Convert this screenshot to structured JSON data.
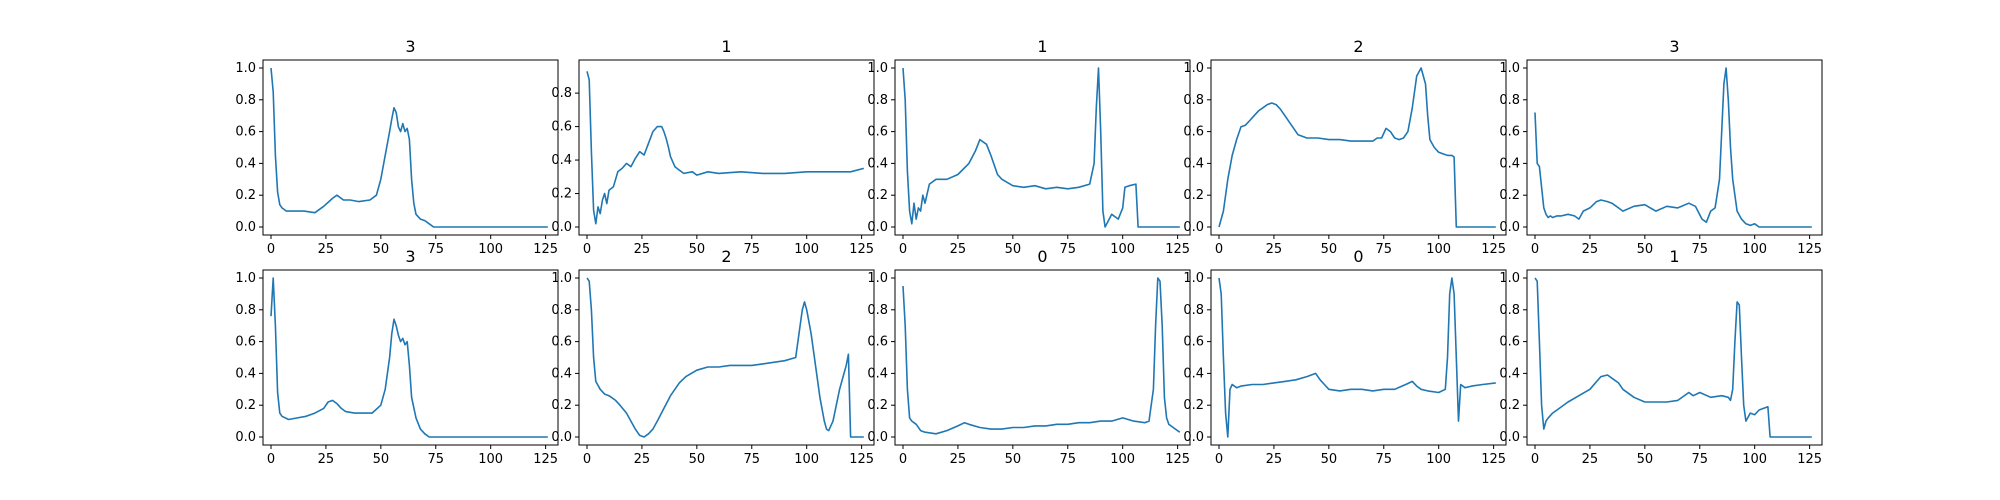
{
  "style": {
    "line_color": "#1f77b4",
    "axes_color": "#000000",
    "background": "#ffffff"
  },
  "chart_data": [
    {
      "type": "line",
      "title": "3",
      "xlim": [
        0,
        127
      ],
      "ylim": [
        0,
        1
      ],
      "xticks": [
        0,
        25,
        50,
        75,
        100,
        125
      ],
      "yticks": [
        0.0,
        0.2,
        0.4,
        0.6,
        0.8,
        1.0
      ],
      "x": [
        0,
        1,
        2,
        3,
        4,
        5,
        7,
        10,
        15,
        20,
        24,
        28,
        30,
        33,
        36,
        40,
        45,
        48,
        50,
        52,
        54,
        55,
        56,
        57,
        58,
        59,
        60,
        61,
        62,
        63,
        64,
        65,
        66,
        68,
        70,
        72,
        74,
        76,
        80,
        90,
        100,
        110,
        120,
        126
      ],
      "y": [
        1.0,
        0.85,
        0.45,
        0.22,
        0.14,
        0.12,
        0.1,
        0.1,
        0.1,
        0.09,
        0.13,
        0.18,
        0.2,
        0.17,
        0.17,
        0.16,
        0.17,
        0.2,
        0.3,
        0.45,
        0.6,
        0.68,
        0.75,
        0.72,
        0.63,
        0.6,
        0.65,
        0.6,
        0.62,
        0.55,
        0.3,
        0.15,
        0.08,
        0.05,
        0.04,
        0.02,
        0.0,
        0.0,
        0.0,
        0.0,
        0.0,
        0.0,
        0.0,
        0.0
      ]
    },
    {
      "type": "line",
      "title": "1",
      "xlim": [
        0,
        127
      ],
      "ylim": [
        0,
        0.95
      ],
      "xticks": [
        0,
        25,
        50,
        75,
        100,
        125
      ],
      "yticks": [
        0.0,
        0.2,
        0.4,
        0.6,
        0.8
      ],
      "x": [
        0,
        1,
        2,
        3,
        4,
        5,
        6,
        7,
        8,
        9,
        10,
        12,
        14,
        16,
        18,
        20,
        22,
        24,
        26,
        28,
        30,
        32,
        34,
        35,
        36,
        37,
        38,
        40,
        42,
        44,
        48,
        50,
        55,
        60,
        70,
        80,
        90,
        100,
        110,
        120,
        126
      ],
      "y": [
        0.93,
        0.88,
        0.45,
        0.1,
        0.02,
        0.12,
        0.08,
        0.16,
        0.2,
        0.14,
        0.22,
        0.24,
        0.33,
        0.35,
        0.38,
        0.36,
        0.41,
        0.45,
        0.43,
        0.5,
        0.57,
        0.6,
        0.6,
        0.57,
        0.53,
        0.48,
        0.42,
        0.36,
        0.34,
        0.32,
        0.33,
        0.31,
        0.33,
        0.32,
        0.33,
        0.32,
        0.32,
        0.33,
        0.33,
        0.33,
        0.35
      ]
    },
    {
      "type": "line",
      "title": "1",
      "xlim": [
        0,
        127
      ],
      "ylim": [
        0,
        1
      ],
      "xticks": [
        0,
        25,
        50,
        75,
        100,
        125
      ],
      "yticks": [
        0.0,
        0.2,
        0.4,
        0.6,
        0.8,
        1.0
      ],
      "x": [
        0,
        1,
        2,
        3,
        4,
        5,
        6,
        7,
        8,
        9,
        10,
        12,
        15,
        20,
        25,
        30,
        33,
        35,
        38,
        40,
        43,
        45,
        50,
        55,
        60,
        65,
        70,
        75,
        80,
        85,
        87,
        88,
        89,
        90,
        91,
        92,
        95,
        98,
        100,
        101,
        103,
        106,
        107,
        110,
        120,
        126
      ],
      "y": [
        1.0,
        0.8,
        0.35,
        0.1,
        0.02,
        0.15,
        0.05,
        0.12,
        0.1,
        0.2,
        0.15,
        0.27,
        0.3,
        0.3,
        0.33,
        0.4,
        0.48,
        0.55,
        0.52,
        0.45,
        0.33,
        0.3,
        0.26,
        0.25,
        0.26,
        0.24,
        0.25,
        0.24,
        0.25,
        0.27,
        0.4,
        0.75,
        1.0,
        0.6,
        0.1,
        0.0,
        0.08,
        0.05,
        0.12,
        0.25,
        0.26,
        0.27,
        0.0,
        0.0,
        0.0,
        0.0
      ]
    },
    {
      "type": "line",
      "title": "2",
      "xlim": [
        0,
        127
      ],
      "ylim": [
        0,
        1
      ],
      "xticks": [
        0,
        25,
        50,
        75,
        100,
        125
      ],
      "yticks": [
        0.0,
        0.2,
        0.4,
        0.6,
        0.8,
        1.0
      ],
      "x": [
        0,
        2,
        4,
        6,
        8,
        10,
        12,
        14,
        16,
        18,
        20,
        22,
        24,
        26,
        28,
        30,
        34,
        36,
        40,
        45,
        50,
        55,
        60,
        65,
        70,
        72,
        74,
        76,
        78,
        80,
        82,
        84,
        86,
        88,
        90,
        92,
        94,
        95,
        96,
        98,
        100,
        102,
        104,
        106,
        107,
        108,
        110,
        120,
        126
      ],
      "y": [
        0.0,
        0.1,
        0.3,
        0.45,
        0.55,
        0.63,
        0.64,
        0.67,
        0.7,
        0.73,
        0.75,
        0.77,
        0.78,
        0.77,
        0.74,
        0.7,
        0.62,
        0.58,
        0.56,
        0.56,
        0.55,
        0.55,
        0.54,
        0.54,
        0.54,
        0.56,
        0.56,
        0.62,
        0.6,
        0.56,
        0.55,
        0.56,
        0.6,
        0.75,
        0.95,
        1.0,
        0.9,
        0.7,
        0.55,
        0.5,
        0.47,
        0.46,
        0.45,
        0.45,
        0.44,
        0.0,
        0.0,
        0.0,
        0.0
      ]
    },
    {
      "type": "line",
      "title": "3",
      "xlim": [
        0,
        127
      ],
      "ylim": [
        0,
        1
      ],
      "xticks": [
        0,
        25,
        50,
        75,
        100,
        125
      ],
      "yticks": [
        0.0,
        0.2,
        0.4,
        0.6,
        0.8,
        1.0
      ],
      "x": [
        0,
        1,
        2,
        3,
        4,
        5,
        6,
        7,
        8,
        10,
        12,
        15,
        18,
        20,
        22,
        25,
        28,
        30,
        33,
        35,
        38,
        40,
        45,
        50,
        55,
        60,
        65,
        70,
        73,
        76,
        78,
        80,
        82,
        84,
        85,
        86,
        87,
        88,
        89,
        90,
        92,
        94,
        96,
        98,
        100,
        102,
        104,
        110,
        120,
        126
      ],
      "y": [
        0.72,
        0.4,
        0.38,
        0.25,
        0.12,
        0.08,
        0.06,
        0.07,
        0.06,
        0.07,
        0.07,
        0.08,
        0.07,
        0.05,
        0.1,
        0.12,
        0.16,
        0.17,
        0.16,
        0.15,
        0.12,
        0.1,
        0.13,
        0.14,
        0.1,
        0.13,
        0.12,
        0.15,
        0.13,
        0.05,
        0.03,
        0.1,
        0.12,
        0.3,
        0.6,
        0.9,
        1.0,
        0.8,
        0.5,
        0.3,
        0.1,
        0.05,
        0.02,
        0.01,
        0.02,
        0.0,
        0.0,
        0.0,
        0.0,
        0.0
      ]
    },
    {
      "type": "line",
      "title": "3",
      "xlim": [
        0,
        127
      ],
      "ylim": [
        0,
        1
      ],
      "xticks": [
        0,
        25,
        50,
        75,
        100,
        125
      ],
      "yticks": [
        0.0,
        0.2,
        0.4,
        0.6,
        0.8,
        1.0
      ],
      "x": [
        0,
        1,
        2,
        3,
        4,
        5,
        8,
        12,
        16,
        20,
        24,
        26,
        28,
        30,
        32,
        34,
        38,
        42,
        46,
        50,
        52,
        54,
        55,
        56,
        57,
        58,
        59,
        60,
        61,
        62,
        63,
        64,
        66,
        68,
        70,
        72,
        80,
        90,
        100,
        110,
        120,
        126
      ],
      "y": [
        0.76,
        1.0,
        0.7,
        0.28,
        0.15,
        0.13,
        0.11,
        0.12,
        0.13,
        0.15,
        0.18,
        0.22,
        0.23,
        0.21,
        0.18,
        0.16,
        0.15,
        0.15,
        0.15,
        0.2,
        0.3,
        0.5,
        0.65,
        0.74,
        0.7,
        0.64,
        0.6,
        0.62,
        0.58,
        0.6,
        0.45,
        0.25,
        0.12,
        0.05,
        0.02,
        0.0,
        0.0,
        0.0,
        0.0,
        0.0,
        0.0,
        0.0
      ]
    },
    {
      "type": "line",
      "title": "2",
      "xlim": [
        0,
        127
      ],
      "ylim": [
        0,
        1
      ],
      "xticks": [
        0,
        25,
        50,
        75,
        100,
        125
      ],
      "yticks": [
        0.0,
        0.2,
        0.4,
        0.6,
        0.8,
        1.0
      ],
      "x": [
        0,
        1,
        2,
        3,
        4,
        6,
        8,
        10,
        13,
        15,
        18,
        20,
        22,
        24,
        26,
        28,
        30,
        32,
        35,
        38,
        40,
        42,
        45,
        50,
        55,
        60,
        65,
        70,
        75,
        80,
        85,
        90,
        95,
        97,
        98,
        99,
        100,
        102,
        104,
        106,
        108,
        109,
        110,
        112,
        115,
        117,
        118,
        119,
        120,
        122,
        126
      ],
      "y": [
        1.0,
        0.98,
        0.8,
        0.5,
        0.35,
        0.3,
        0.27,
        0.26,
        0.23,
        0.2,
        0.15,
        0.1,
        0.05,
        0.01,
        0.0,
        0.02,
        0.05,
        0.1,
        0.18,
        0.26,
        0.3,
        0.34,
        0.38,
        0.42,
        0.44,
        0.44,
        0.45,
        0.45,
        0.45,
        0.46,
        0.47,
        0.48,
        0.5,
        0.7,
        0.8,
        0.85,
        0.8,
        0.65,
        0.45,
        0.25,
        0.1,
        0.05,
        0.04,
        0.1,
        0.3,
        0.4,
        0.45,
        0.52,
        0.0,
        0.0,
        0.0
      ]
    },
    {
      "type": "line",
      "title": "0",
      "xlim": [
        0,
        127
      ],
      "ylim": [
        0,
        1
      ],
      "xticks": [
        0,
        25,
        50,
        75,
        100,
        125
      ],
      "yticks": [
        0.0,
        0.2,
        0.4,
        0.6,
        0.8,
        1.0
      ],
      "x": [
        0,
        1,
        2,
        3,
        4,
        6,
        8,
        10,
        15,
        20,
        25,
        28,
        30,
        35,
        40,
        45,
        50,
        55,
        60,
        65,
        70,
        75,
        80,
        85,
        90,
        95,
        100,
        105,
        110,
        112,
        114,
        115,
        116,
        117,
        118,
        119,
        120,
        121,
        122,
        124,
        126
      ],
      "y": [
        0.95,
        0.7,
        0.3,
        0.12,
        0.1,
        0.08,
        0.04,
        0.03,
        0.02,
        0.04,
        0.07,
        0.09,
        0.08,
        0.06,
        0.05,
        0.05,
        0.06,
        0.06,
        0.07,
        0.07,
        0.08,
        0.08,
        0.09,
        0.09,
        0.1,
        0.1,
        0.12,
        0.1,
        0.09,
        0.1,
        0.3,
        0.7,
        1.0,
        0.98,
        0.7,
        0.25,
        0.12,
        0.08,
        0.07,
        0.05,
        0.03
      ]
    },
    {
      "type": "line",
      "title": "0",
      "xlim": [
        0,
        127
      ],
      "ylim": [
        0,
        1
      ],
      "xticks": [
        0,
        25,
        50,
        75,
        100,
        125
      ],
      "yticks": [
        0.0,
        0.2,
        0.4,
        0.6,
        0.8,
        1.0
      ],
      "x": [
        0,
        1,
        2,
        3,
        4,
        5,
        6,
        8,
        10,
        15,
        20,
        25,
        30,
        35,
        40,
        42,
        44,
        46,
        48,
        50,
        55,
        60,
        65,
        70,
        75,
        80,
        85,
        88,
        90,
        92,
        95,
        100,
        103,
        104,
        105,
        106,
        107,
        108,
        109,
        110,
        112,
        115,
        120,
        126
      ],
      "y": [
        1.0,
        0.9,
        0.5,
        0.15,
        0.0,
        0.3,
        0.33,
        0.31,
        0.32,
        0.33,
        0.33,
        0.34,
        0.35,
        0.36,
        0.38,
        0.39,
        0.4,
        0.36,
        0.33,
        0.3,
        0.29,
        0.3,
        0.3,
        0.29,
        0.3,
        0.3,
        0.33,
        0.35,
        0.32,
        0.3,
        0.29,
        0.28,
        0.3,
        0.5,
        0.9,
        1.0,
        0.9,
        0.5,
        0.1,
        0.33,
        0.31,
        0.32,
        0.33,
        0.34
      ]
    },
    {
      "type": "line",
      "title": "1",
      "xlim": [
        0,
        127
      ],
      "ylim": [
        0,
        1
      ],
      "xticks": [
        0,
        25,
        50,
        75,
        100,
        125
      ],
      "yticks": [
        0.0,
        0.2,
        0.4,
        0.6,
        0.8,
        1.0
      ],
      "x": [
        0,
        1,
        2,
        3,
        4,
        5,
        6,
        8,
        10,
        15,
        20,
        25,
        30,
        33,
        35,
        38,
        40,
        45,
        50,
        55,
        60,
        65,
        70,
        72,
        75,
        80,
        85,
        88,
        89,
        90,
        91,
        92,
        93,
        94,
        95,
        96,
        98,
        100,
        102,
        104,
        106,
        107,
        108,
        110,
        120,
        126
      ],
      "y": [
        1.0,
        0.98,
        0.6,
        0.2,
        0.05,
        0.1,
        0.12,
        0.15,
        0.17,
        0.22,
        0.26,
        0.3,
        0.38,
        0.39,
        0.37,
        0.34,
        0.3,
        0.25,
        0.22,
        0.22,
        0.22,
        0.23,
        0.28,
        0.26,
        0.28,
        0.25,
        0.26,
        0.25,
        0.23,
        0.3,
        0.6,
        0.85,
        0.83,
        0.5,
        0.2,
        0.1,
        0.15,
        0.14,
        0.17,
        0.18,
        0.19,
        0.0,
        0.0,
        0.0,
        0.0,
        0.0
      ]
    }
  ]
}
